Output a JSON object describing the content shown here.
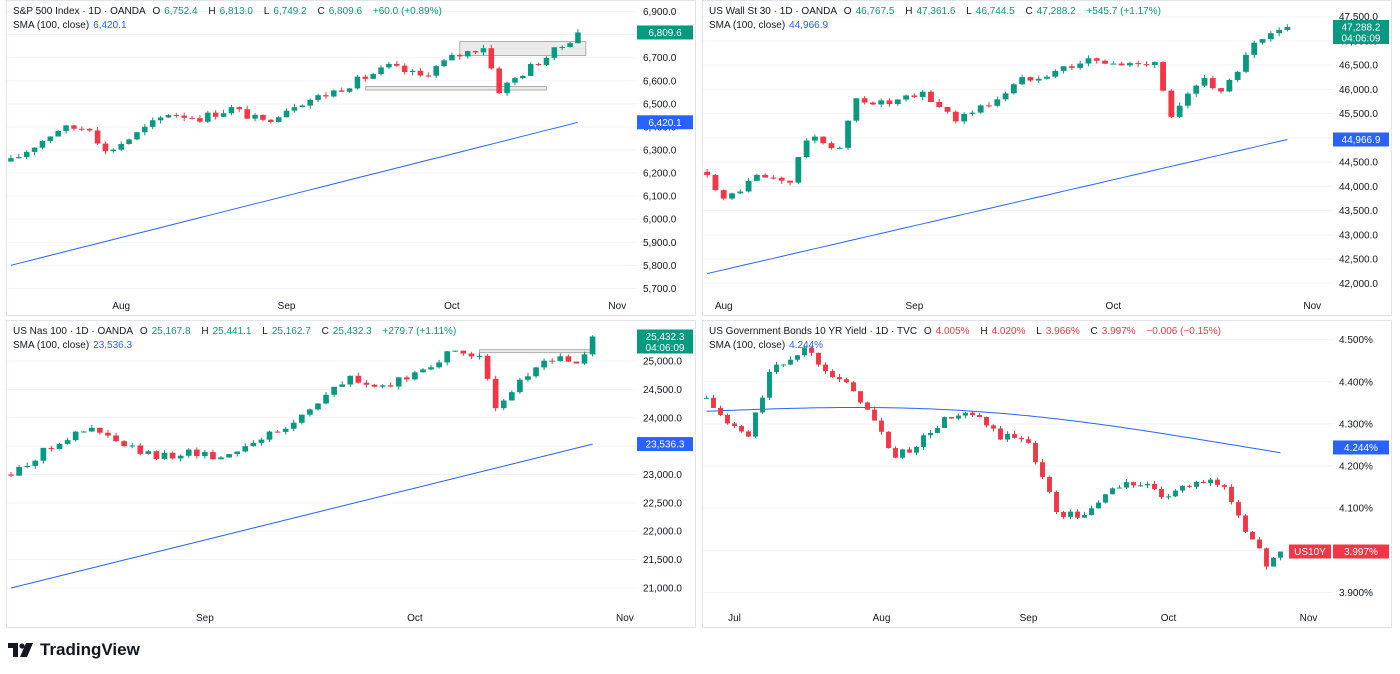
{
  "colors": {
    "up": "#089981",
    "down": "#f23645",
    "sma": "#2962ff",
    "grid": "#f0f3fa",
    "zone_fill": "#d9d9d9",
    "zone_stroke": "#9e9e9e"
  },
  "brand": {
    "name": "TradingView"
  },
  "chart_data": [
    {
      "type": "candlestick",
      "id": "spx",
      "title": "S&P 500 Index · 1D · OANDA",
      "ohlc_labels": {
        "o": "O",
        "o_val": "6,752.4",
        "h": "H",
        "h_val": "6,813.0",
        "l": "L",
        "l_val": "6,749.2",
        "c": "C",
        "c_val": "6,809.6",
        "chg": "+60.0 (+0.89%)"
      },
      "sma_label": "SMA (100, close)",
      "sma_val": "6,420.1",
      "ylim": [
        5680,
        6920
      ],
      "yticks": [
        5700,
        5800,
        5900,
        6000,
        6100,
        6200,
        6300,
        6400,
        6500,
        6600,
        6700,
        6800,
        6900
      ],
      "ytick_labels": [
        "5,700.0",
        "5,800.0",
        "5,900.0",
        "6,000.0",
        "6,100.0",
        "6,200.0",
        "6,300.0",
        "6,400.0",
        "6,500.0",
        "6,600.0",
        "6,700.0",
        "6,800.0",
        "6,900.0"
      ],
      "xlabels": [
        {
          "i": 14,
          "t": "Aug"
        },
        {
          "i": 35,
          "t": "Sep"
        },
        {
          "i": 56,
          "t": "Oct"
        },
        {
          "i": 77,
          "t": "Nov"
        }
      ],
      "n_slots": 80,
      "start": 6250,
      "end": 6809.6,
      "shape": [
        [
          0,
          6250
        ],
        [
          6,
          6390
        ],
        [
          10,
          6400
        ],
        [
          12,
          6290
        ],
        [
          16,
          6370
        ],
        [
          20,
          6460
        ],
        [
          24,
          6440
        ],
        [
          28,
          6480
        ],
        [
          32,
          6420
        ],
        [
          36,
          6500
        ],
        [
          40,
          6540
        ],
        [
          44,
          6600
        ],
        [
          48,
          6660
        ],
        [
          52,
          6620
        ],
        [
          56,
          6700
        ],
        [
          60,
          6750
        ],
        [
          62,
          6560
        ],
        [
          66,
          6660
        ],
        [
          70,
          6750
        ],
        [
          72,
          6809.6
        ]
      ],
      "sma": {
        "start": 5800,
        "end": 6420.1
      },
      "price_label": {
        "value": 6809.6,
        "text": "6,809.6",
        "color": "#089981"
      },
      "sma_label_box": {
        "value": 6420.1,
        "text": "6,420.1"
      },
      "zones": [
        {
          "i0": 57,
          "i1": 73,
          "y0": 6710,
          "y1": 6770
        },
        {
          "i0": 45,
          "i1": 68,
          "y0": 6560,
          "y1": 6575
        }
      ]
    },
    {
      "type": "candlestick",
      "id": "dji",
      "title": "US Wall St 30 · 1D · OANDA",
      "ohlc_labels": {
        "o": "O",
        "o_val": "46,767.5",
        "h": "H",
        "h_val": "47,361.6",
        "l": "L",
        "l_val": "46,744.5",
        "c": "C",
        "c_val": "47,288.2",
        "chg": "+545.7 (+1.17%)"
      },
      "sma_label": "SMA (100, close)",
      "sma_val": "44,966.9",
      "ylim": [
        41800,
        47700
      ],
      "yticks": [
        42000,
        42500,
        43000,
        43500,
        44000,
        44500,
        45000,
        45500,
        46000,
        46500,
        47000,
        47500
      ],
      "ytick_labels": [
        "42,000.0",
        "42,500.0",
        "43,000.0",
        "43,500.0",
        "44,000.0",
        "44,500.0",
        "45,000.0",
        "45,500.0",
        "46,000.0",
        "46,500.0",
        "47,000.0",
        "47,500.0"
      ],
      "xlabels": [
        {
          "i": 2,
          "t": "Aug"
        },
        {
          "i": 25,
          "t": "Sep"
        },
        {
          "i": 49,
          "t": "Oct"
        },
        {
          "i": 73,
          "t": "Nov"
        }
      ],
      "n_slots": 76,
      "start": 44300,
      "end": 47288.2,
      "shape": [
        [
          0,
          44300
        ],
        [
          2,
          43700
        ],
        [
          6,
          44200
        ],
        [
          10,
          44100
        ],
        [
          12,
          45000
        ],
        [
          16,
          44800
        ],
        [
          18,
          45800
        ],
        [
          22,
          45700
        ],
        [
          26,
          45900
        ],
        [
          30,
          45400
        ],
        [
          34,
          45700
        ],
        [
          38,
          46200
        ],
        [
          42,
          46400
        ],
        [
          46,
          46600
        ],
        [
          50,
          46500
        ],
        [
          54,
          46600
        ],
        [
          56,
          45400
        ],
        [
          60,
          46300
        ],
        [
          62,
          45900
        ],
        [
          66,
          46900
        ],
        [
          70,
          47288.2
        ]
      ],
      "sma": {
        "start": 42200,
        "end": 44966.9
      },
      "price_label": {
        "value": 47288.2,
        "text": "47,288.2",
        "sub": "04:06:09",
        "color": "#089981"
      },
      "sma_label_box": {
        "value": 44966.9,
        "text": "44,966.9"
      },
      "zones": []
    },
    {
      "type": "candlestick",
      "id": "ndx",
      "title": "US Nas 100 · 1D · OANDA",
      "ohlc_labels": {
        "o": "O",
        "o_val": "25,167.8",
        "h": "H",
        "h_val": "25,441.1",
        "l": "L",
        "l_val": "25,162.7",
        "c": "C",
        "c_val": "25,432.3",
        "chg": "+279.7 (+1.11%)"
      },
      "sma_label": "SMA (100, close)",
      "sma_val": "23,536.3",
      "ylim": [
        20700,
        25600
      ],
      "yticks": [
        21000,
        21500,
        22000,
        22500,
        23000,
        23500,
        24000,
        24500,
        25000
      ],
      "ytick_labels": [
        "21,000.0",
        "21,500.0",
        "22,000.0",
        "22,500.0",
        "23,000.0",
        "23,500.0",
        "24,000.0",
        "24,500.0",
        "25,000.0"
      ],
      "xlabels": [
        {
          "i": 24,
          "t": "Sep"
        },
        {
          "i": 50,
          "t": "Oct"
        },
        {
          "i": 76,
          "t": "Nov"
        }
      ],
      "n_slots": 78,
      "start": 23000,
      "end": 25432.3,
      "shape": [
        [
          0,
          23000
        ],
        [
          6,
          23600
        ],
        [
          10,
          23800
        ],
        [
          14,
          23500
        ],
        [
          18,
          23300
        ],
        [
          22,
          23400
        ],
        [
          26,
          23300
        ],
        [
          30,
          23600
        ],
        [
          34,
          23800
        ],
        [
          38,
          24300
        ],
        [
          42,
          24700
        ],
        [
          46,
          24500
        ],
        [
          50,
          24800
        ],
        [
          54,
          25100
        ],
        [
          58,
          25150
        ],
        [
          60,
          24100
        ],
        [
          64,
          24800
        ],
        [
          68,
          25100
        ],
        [
          70,
          24900
        ],
        [
          72,
          25432.3
        ]
      ],
      "sma": {
        "start": 21000,
        "end": 23536.3
      },
      "price_label": {
        "value": 25432.3,
        "text": "25,432.3",
        "sub": "04:06:09",
        "color": "#089981"
      },
      "sma_label_box": {
        "value": 23536.3,
        "text": "23,536.3"
      },
      "zones": [
        {
          "i0": 58,
          "i1": 72,
          "y0": 25180,
          "y1": 25200
        }
      ]
    },
    {
      "type": "candlestick",
      "id": "us10y",
      "title": "US Government Bonds 10 YR Yield · 1D · TVC",
      "ohlc_labels": {
        "o": "O",
        "o_val": "4.005%",
        "h": "H",
        "h_val": "4.020%",
        "l": "L",
        "l_val": "3.966%",
        "c": "C",
        "c_val": "3.997%",
        "chg": "−0.006 (−0.15%)"
      },
      "sma_label": "SMA (100, close)",
      "sma_val": "4.244%",
      "ylim": [
        3.87,
        4.53
      ],
      "yticks": [
        3.9,
        4.0,
        4.1,
        4.2,
        4.3,
        4.4,
        4.5
      ],
      "ytick_labels": [
        "3.900%",
        "4.000%",
        "4.100%",
        "4.200%",
        "4.300%",
        "4.400%",
        "4.500%"
      ],
      "xlabels": [
        {
          "i": 4,
          "t": "Jul"
        },
        {
          "i": 25,
          "t": "Aug"
        },
        {
          "i": 46,
          "t": "Sep"
        },
        {
          "i": 66,
          "t": "Oct"
        },
        {
          "i": 86,
          "t": "Nov"
        }
      ],
      "n_slots": 90,
      "start": 4.36,
      "end": 3.997,
      "shape": [
        [
          0,
          4.36
        ],
        [
          3,
          4.3
        ],
        [
          6,
          4.27
        ],
        [
          9,
          4.42
        ],
        [
          14,
          4.48
        ],
        [
          18,
          4.42
        ],
        [
          22,
          4.36
        ],
        [
          27,
          4.22
        ],
        [
          30,
          4.25
        ],
        [
          34,
          4.31
        ],
        [
          38,
          4.32
        ],
        [
          42,
          4.27
        ],
        [
          46,
          4.26
        ],
        [
          50,
          4.09
        ],
        [
          54,
          4.08
        ],
        [
          58,
          4.15
        ],
        [
          62,
          4.16
        ],
        [
          66,
          4.12
        ],
        [
          70,
          4.17
        ],
        [
          74,
          4.15
        ],
        [
          78,
          4.02
        ],
        [
          80,
          3.97
        ],
        [
          82,
          3.997
        ]
      ],
      "sma": {
        "start": 4.33,
        "end": 4.244,
        "bulge": 0.04
      },
      "price_label": {
        "value": 3.997,
        "text": "3.997%",
        "tag": "US10Y",
        "color": "#f23645"
      },
      "sma_label_box": {
        "value": 4.244,
        "text": "4.244%"
      },
      "zones": []
    }
  ]
}
